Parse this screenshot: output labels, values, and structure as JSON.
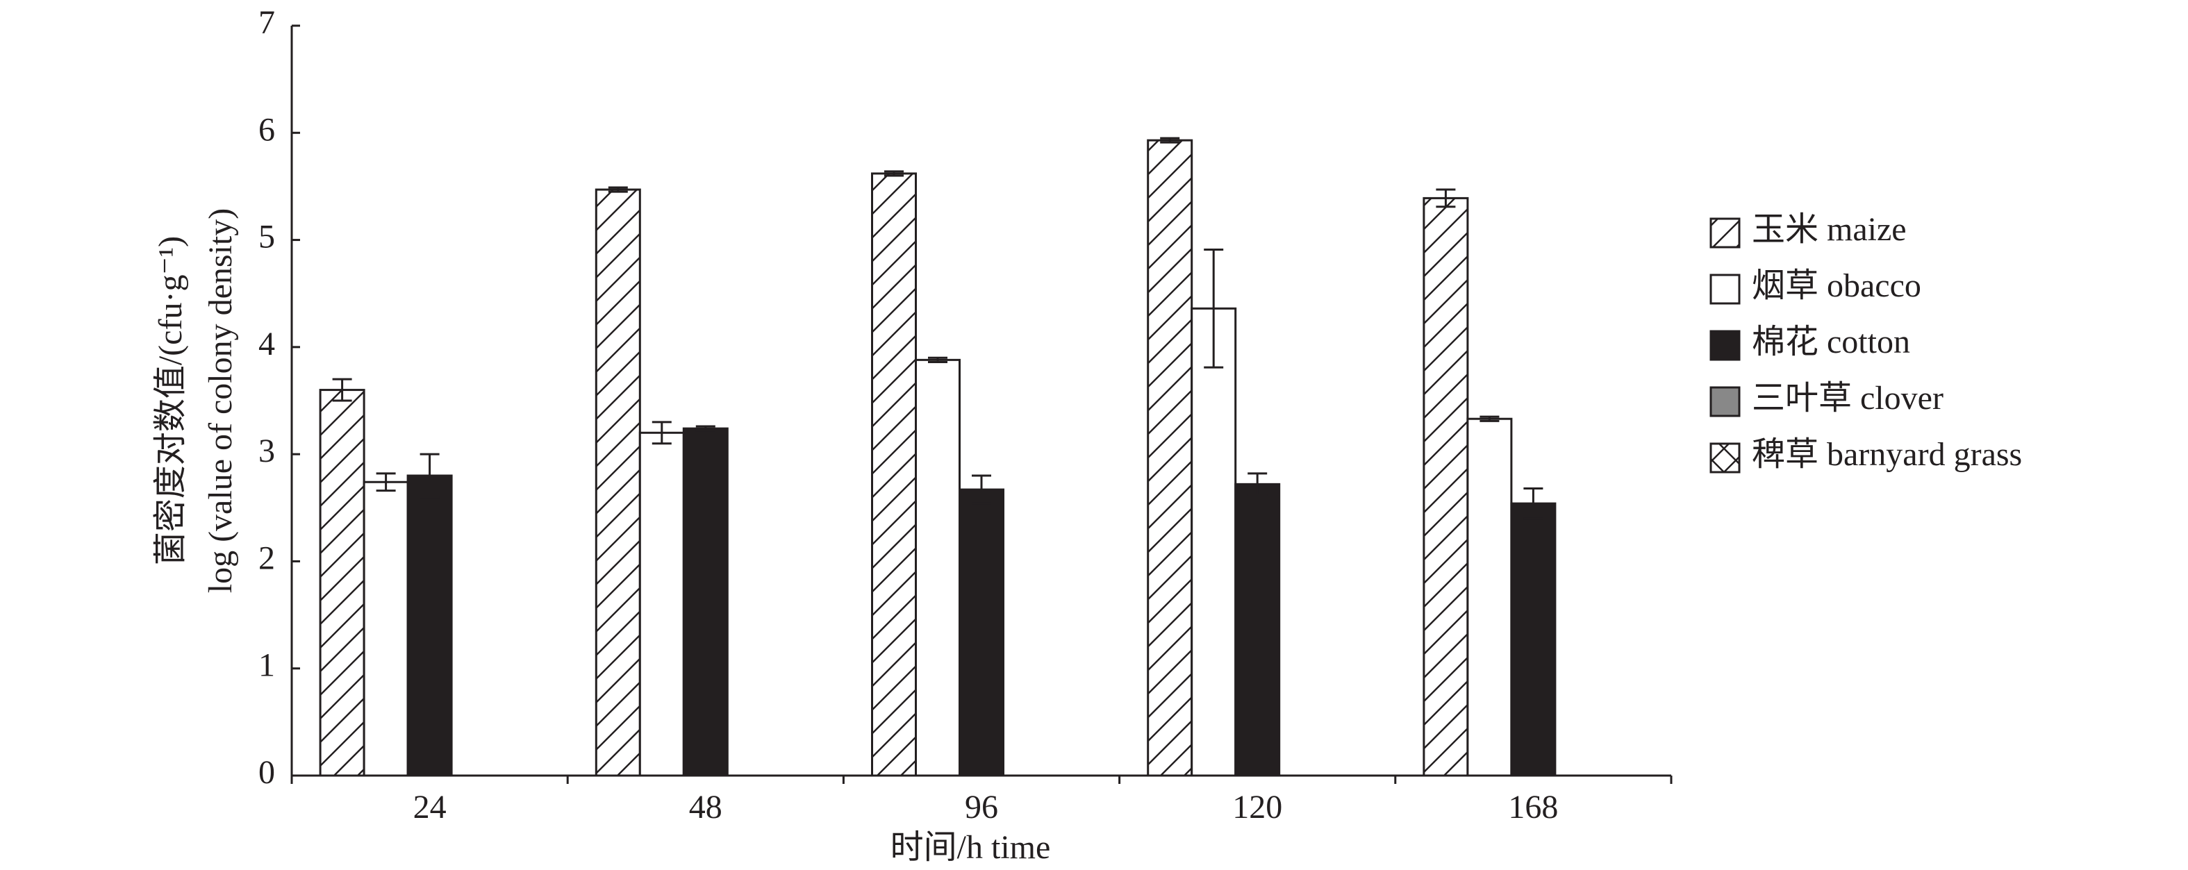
{
  "chart_data": {
    "type": "bar",
    "ylabel": [
      "菌密度对数值/(cfu·g⁻¹)",
      "log (value of colony density)"
    ],
    "xlabel": "时间/h time",
    "categories": [
      "24",
      "48",
      "96",
      "120",
      "168"
    ],
    "ylim": [
      0,
      7
    ],
    "yticks": [
      0,
      1,
      2,
      3,
      4,
      5,
      6,
      7
    ],
    "series": [
      {
        "name": "玉米 maize",
        "color": "#ffffff",
        "pattern": "hatch",
        "values": [
          3.6,
          5.47,
          5.62,
          5.93,
          5.39
        ],
        "errors": [
          0.1,
          0.02,
          0.02,
          0.02,
          0.08
        ]
      },
      {
        "name": "烟草 obacco",
        "color": "#ffffff",
        "values": [
          2.74,
          3.2,
          3.88,
          4.36,
          3.33
        ],
        "errors": [
          0.08,
          0.1,
          0.02,
          0.55,
          0.02
        ]
      },
      {
        "name": "棉花 cotton",
        "color": "#231f20",
        "values": [
          2.8,
          3.24,
          2.67,
          2.72,
          2.54
        ],
        "errors": [
          0.2,
          0.02,
          0.13,
          0.1,
          0.14
        ]
      },
      {
        "name": "三叶草 clover",
        "color": "#888888",
        "values": [
          null,
          null,
          null,
          null,
          null
        ],
        "errors": [
          null,
          null,
          null,
          null,
          null
        ]
      },
      {
        "name": "稗草 barnyard grass",
        "color": "#ffffff",
        "pattern": "crosshatch",
        "values": [
          null,
          null,
          null,
          null,
          null
        ],
        "errors": [
          null,
          null,
          null,
          null,
          null
        ]
      }
    ]
  }
}
